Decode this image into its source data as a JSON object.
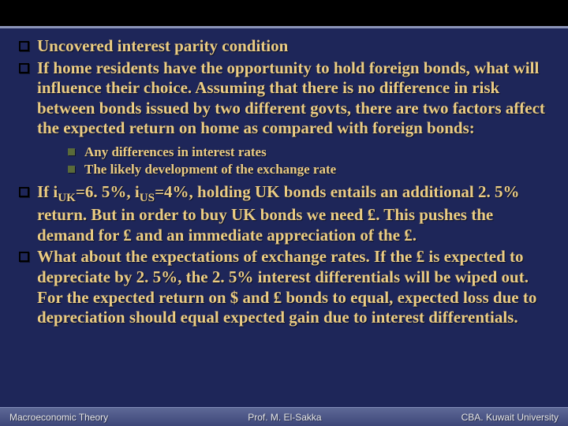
{
  "colors": {
    "background": "#1e2659",
    "topbar": "#000000",
    "topbar_border": "#8b94b8",
    "text": "#ebcc83",
    "bullet_border": "#000000",
    "sub_bullet_fill": "#5a6a3a",
    "footer_gradient_top": "#5d6896",
    "footer_gradient_bottom": "#3d4678",
    "footer_text": "#e6e6e6"
  },
  "typography": {
    "body_font": "Times New Roman",
    "body_size_pt": 16,
    "body_weight": "bold",
    "sub_size_pt": 13,
    "footer_font": "Arial",
    "footer_size_pt": 9
  },
  "bullets": [
    {
      "html": "Uncovered interest parity condition"
    },
    {
      "html": "If home residents have the opportunity to hold foreign bonds, what will influence their choice. Assuming that there is no difference in risk between bonds issued by two different govts, there are two factors affect the expected return on home as compared with foreign bonds:"
    }
  ],
  "sub_bullets": [
    {
      "html": "Any differences in interest rates"
    },
    {
      "html": "The likely development of the exchange rate"
    }
  ],
  "bullets2": [
    {
      "html": "If i<sub>UK</sub>=6. 5%, i<sub>US</sub>=4%, holding UK bonds entails an additional 2. 5% return. But in order to buy UK bonds we need ₤. This pushes the demand for ₤ and an immediate appreciation of the ₤."
    },
    {
      "html": "What about the expectations of exchange rates. If the ₤ is expected to depreciate by 2. 5%, the 2. 5% interest differentials will be wiped out. For the expected return on $ and ₤ bonds to equal, expected loss due to depreciation should equal expected gain due to interest differentials."
    }
  ],
  "footer": {
    "left": "Macroeconomic Theory",
    "center": "Prof. M. El-Sakka",
    "right": "CBA. Kuwait University"
  }
}
